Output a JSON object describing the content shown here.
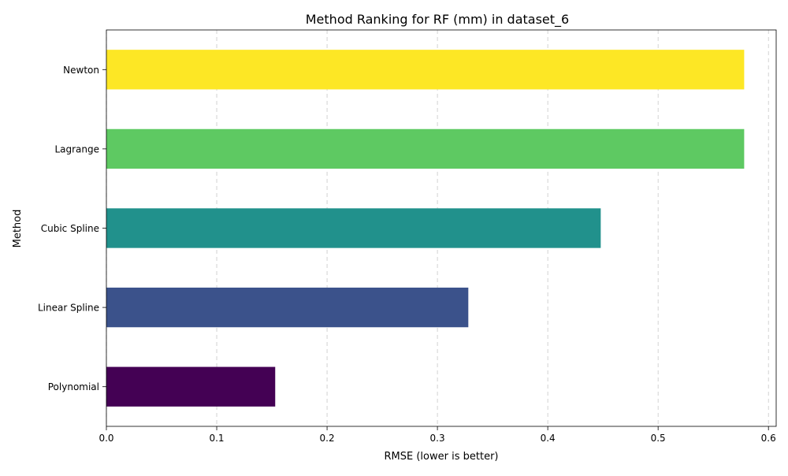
{
  "chart_data": {
    "type": "bar",
    "orientation": "horizontal",
    "title": "Method Ranking for RF (mm) in dataset_6",
    "xlabel": "RMSE (lower is better)",
    "ylabel": "Method",
    "categories": [
      "Polynomial",
      "Linear Spline",
      "Cubic Spline",
      "Lagrange",
      "Newton"
    ],
    "values": [
      0.153,
      0.328,
      0.448,
      0.578,
      0.578
    ],
    "colors": [
      "#440154",
      "#3b528b",
      "#21918c",
      "#5ec962",
      "#fde725"
    ],
    "xlim": [
      0,
      0.607
    ],
    "xticks": [
      0.0,
      0.1,
      0.2,
      0.3,
      0.4,
      0.5,
      0.6
    ],
    "xtick_labels": [
      "0.0",
      "0.1",
      "0.2",
      "0.3",
      "0.4",
      "0.5",
      "0.6"
    ],
    "grid": "x-dashed"
  }
}
